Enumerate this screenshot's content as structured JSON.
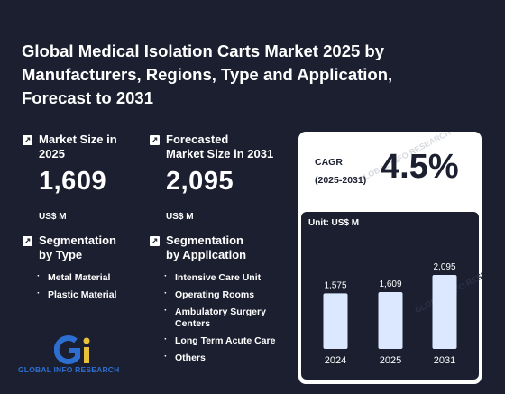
{
  "title": "Global Medical Isolation Carts Market 2025 by Manufacturers, Regions, Type and Application, Forecast to 2031",
  "market_size": {
    "label_line1": "Market Size in",
    "label_line2": "2025",
    "value": "1,609",
    "unit": "US$ M"
  },
  "forecast": {
    "label_line1": "Forecasted",
    "label_line2": "Market Size in 2031",
    "value": "2,095",
    "unit": "US$ M"
  },
  "seg_type": {
    "label_line1": "Segmentation",
    "label_line2": "by Type",
    "items": [
      "Metal Material",
      "Plastic Material"
    ]
  },
  "seg_app": {
    "label_line1": "Segmentation",
    "label_line2": "by Application",
    "items": [
      "Intensive Care Unit",
      "Operating Rooms",
      "Ambulatory Surgery",
      "Centers",
      "Long Term Acute Care",
      "Others"
    ]
  },
  "cagr": {
    "label": "CAGR",
    "period": "(2025-2031)",
    "value": "4.5%"
  },
  "logo_text": "GLOBAL INFO RESEARCH",
  "watermark_text": "GLOBAL INFO RESEARCH",
  "colors": {
    "background": "#1b1f2f",
    "bar": "#dbe8ff",
    "card": "#ffffff",
    "logo_blue": "#2c6fd1",
    "logo_yellow": "#e8c23a"
  },
  "chart_data": {
    "type": "bar",
    "unit_label": "Unit: US$ M",
    "categories": [
      "2024",
      "2025",
      "2031"
    ],
    "values": [
      1575,
      1609,
      2095
    ],
    "value_labels": [
      "1,575",
      "1,609",
      "2,095"
    ]
  }
}
